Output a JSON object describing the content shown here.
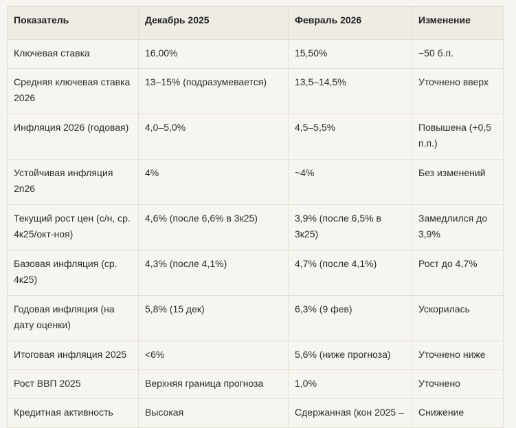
{
  "table": {
    "headers": [
      "Показатель",
      "Декабрь 2025",
      "Февраль 2026",
      "Изменение"
    ],
    "rows": [
      [
        "Ключевая ставка",
        "16,00%",
        "15,50%",
        "−50 б.п."
      ],
      [
        "Средняя ключевая ставка 2026",
        "13–15% (подразумевается)",
        "13,5–14,5%",
        "Уточнено вверх"
      ],
      [
        "Инфляция 2026 (годовая)",
        "4,0–5,0%",
        "4,5–5,5%",
        "Повышена (+0,5 п.п.)"
      ],
      [
        "Устойчивая инфляция 2п26",
        "4%",
        "~4%",
        "Без изменений"
      ],
      [
        "Текущий рост цен (с/н, ср. 4к25/окт-ноя)",
        "4,6% (после 6,6% в 3к25)",
        "3,9% (после 6,5% в 3к25)",
        "Замедлился до 3,9%"
      ],
      [
        "Базовая инфляция (ср. 4к25)",
        "4,3% (после 4,1%)",
        "4,7% (после 4,1%)",
        "Рост до 4,7%"
      ],
      [
        "Годовая инфляция (на дату оценки)",
        "5,8% (15 дек)",
        "6,3% (9 фев)",
        "Ускорилась"
      ],
      [
        "Итоговая инфляция 2025",
        "<6%",
        "5,6% (ниже прогноза)",
        "Уточнено ниже"
      ],
      [
        "Рост ВВП 2025",
        "Верхняя граница прогноза",
        "1,0%",
        "Уточнено"
      ],
      [
        "Кредитная активность",
        "Высокая",
        "Сдержанная (кон 2025 –",
        "Снижение"
      ]
    ]
  }
}
